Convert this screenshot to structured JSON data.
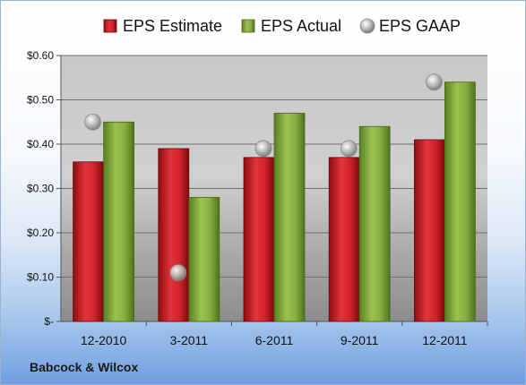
{
  "chart_data": {
    "type": "bar",
    "title": "",
    "xlabel": "",
    "ylabel": "",
    "categories": [
      "12-2010",
      "3-2011",
      "6-2011",
      "9-2011",
      "12-2011"
    ],
    "series": [
      {
        "name": "EPS Estimate",
        "type": "bar",
        "color": "#cc1f24",
        "values": [
          0.36,
          0.39,
          0.37,
          0.37,
          0.41
        ]
      },
      {
        "name": "EPS Actual",
        "type": "bar",
        "color": "#7fa63a",
        "values": [
          0.45,
          0.28,
          0.47,
          0.44,
          0.54
        ]
      },
      {
        "name": "EPS GAAP",
        "type": "scatter",
        "color": "#b0b0b0",
        "values": [
          0.45,
          0.11,
          0.39,
          0.39,
          0.54
        ]
      }
    ],
    "ylim": [
      0,
      0.6
    ],
    "yticks": [
      0,
      0.1,
      0.2,
      0.3,
      0.4,
      0.5,
      0.6
    ],
    "ytick_labels": [
      "$-",
      "$0.10",
      "$0.20",
      "$0.30",
      "$0.40",
      "$0.50",
      "$0.60"
    ],
    "grid": true,
    "legend_position": "top"
  },
  "footer": {
    "company": "Babcock & Wilcox"
  }
}
